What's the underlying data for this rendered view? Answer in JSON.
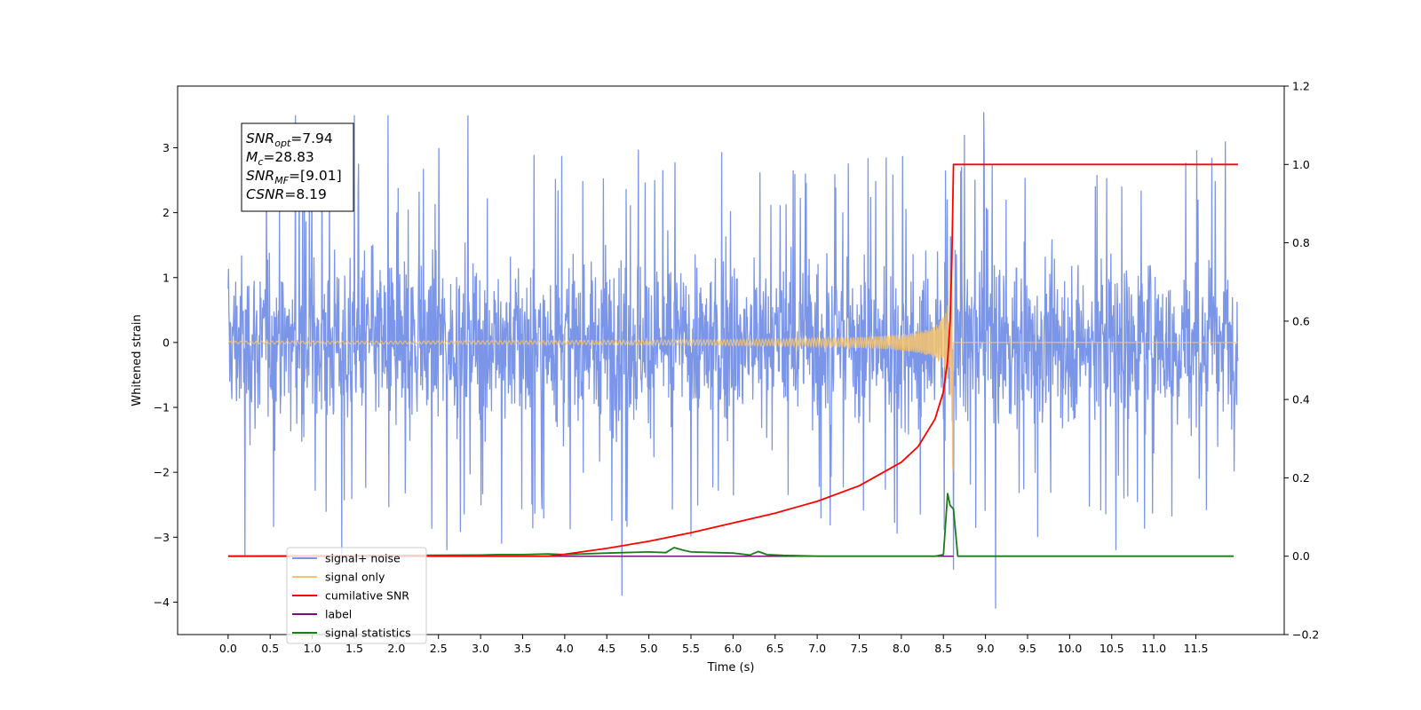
{
  "chart_data": {
    "type": "line",
    "title": "",
    "xlabel": "Time (s)",
    "ylabel": "Whitened strain",
    "xlim": [
      -0.6,
      12.55
    ],
    "ylim": [
      -4.5,
      3.95
    ],
    "y2lim": [
      -0.2,
      1.2
    ],
    "x_ticks": [
      "0.0",
      "0.5",
      "1.0",
      "1.5",
      "2.0",
      "2.5",
      "3.0",
      "3.5",
      "4.0",
      "4.5",
      "5.0",
      "5.5",
      "6.0",
      "6.5",
      "7.0",
      "7.5",
      "8.0",
      "8.5",
      "9.0",
      "9.5",
      "10.0",
      "10.5",
      "11.0",
      "11.5"
    ],
    "y_ticks": [
      "3",
      "2",
      "1",
      "0",
      "−1",
      "−2",
      "−3",
      "−4"
    ],
    "y2_ticks": [
      "1.2",
      "1.0",
      "0.8",
      "0.6",
      "0.4",
      "0.2",
      "0.0",
      "−0.2"
    ],
    "annotation": {
      "lines": [
        {
          "sym": "SNR",
          "sub": "opt",
          "val": "=7.94"
        },
        {
          "sym": "M",
          "sub": "c",
          "val": "=28.83"
        },
        {
          "sym": "SNR",
          "sub": "MF",
          "val": "=[9.01]"
        },
        {
          "sym": "CSNR",
          "sub": "",
          "val": "=8.19"
        }
      ]
    },
    "legend": {
      "position": "lower-left",
      "entries": [
        {
          "label": "signal+ noise",
          "color": "#7b96e8"
        },
        {
          "label": "signal only",
          "color": "#f7c46c"
        },
        {
          "label": "cumilative SNR",
          "color": "#ff0000"
        },
        {
          "label": "label",
          "color": "#7a0f7a"
        },
        {
          "label": "signal statistics",
          "color": "#1a7d1a"
        }
      ]
    },
    "series": [
      {
        "name": "signal+ noise",
        "axis": "left",
        "color": "#7b96e8",
        "t_range": [
          0.0,
          12.0
        ],
        "envelope": [
          -2.0,
          2.0
        ],
        "peaks": [
          [
            0.2,
            -3.3
          ],
          [
            0.8,
            3.5
          ],
          [
            1.35,
            -3.4
          ],
          [
            1.5,
            3.5
          ],
          [
            1.9,
            3.5
          ],
          [
            2.6,
            -3.2
          ],
          [
            2.85,
            3.5
          ],
          [
            3.25,
            -3.1
          ],
          [
            4.68,
            -3.9
          ],
          [
            8.62,
            -3.5
          ],
          [
            8.75,
            3.2
          ],
          [
            8.98,
            3.55
          ],
          [
            9.12,
            -4.1
          ],
          [
            10.55,
            -3.2
          ],
          [
            11.85,
            3.1
          ]
        ]
      },
      {
        "name": "signal only",
        "axis": "left",
        "color": "#f7c46c",
        "t_range": [
          0.0,
          12.0
        ],
        "merger_time": 8.62,
        "peak_amplitude": 2.0
      },
      {
        "name": "cumilative SNR",
        "axis": "right",
        "color": "#ff0000",
        "x": [
          0.0,
          3.8,
          4.0,
          4.5,
          5.0,
          5.5,
          6.0,
          6.5,
          7.0,
          7.5,
          8.0,
          8.2,
          8.4,
          8.5,
          8.55,
          8.58,
          8.6,
          8.62,
          9.0,
          12.0
        ],
        "y": [
          0.0,
          0.0,
          0.005,
          0.02,
          0.038,
          0.06,
          0.085,
          0.11,
          0.14,
          0.18,
          0.24,
          0.28,
          0.35,
          0.42,
          0.5,
          0.6,
          0.75,
          1.0,
          1.0,
          1.0
        ]
      },
      {
        "name": "label",
        "axis": "right",
        "color": "#7a0f7a",
        "x": [
          3.0,
          8.62
        ],
        "y": [
          0.0,
          0.0
        ]
      },
      {
        "name": "signal statistics",
        "axis": "right",
        "color": "#1a7d1a",
        "x": [
          0.0,
          3.0,
          3.2,
          3.5,
          3.8,
          4.0,
          4.5,
          5.0,
          5.2,
          5.3,
          5.4,
          5.5,
          5.8,
          6.0,
          6.2,
          6.3,
          6.4,
          6.6,
          7.0,
          8.4,
          8.5,
          8.55,
          8.58,
          8.62,
          8.67,
          8.72,
          11.95
        ],
        "y": [
          0.0,
          0.003,
          0.004,
          0.004,
          0.006,
          0.004,
          0.008,
          0.011,
          0.009,
          0.022,
          0.016,
          0.011,
          0.009,
          0.008,
          0.003,
          0.012,
          0.004,
          0.002,
          0.0,
          0.0,
          0.004,
          0.16,
          0.13,
          0.12,
          0.0,
          0.0,
          0.0
        ]
      }
    ]
  }
}
